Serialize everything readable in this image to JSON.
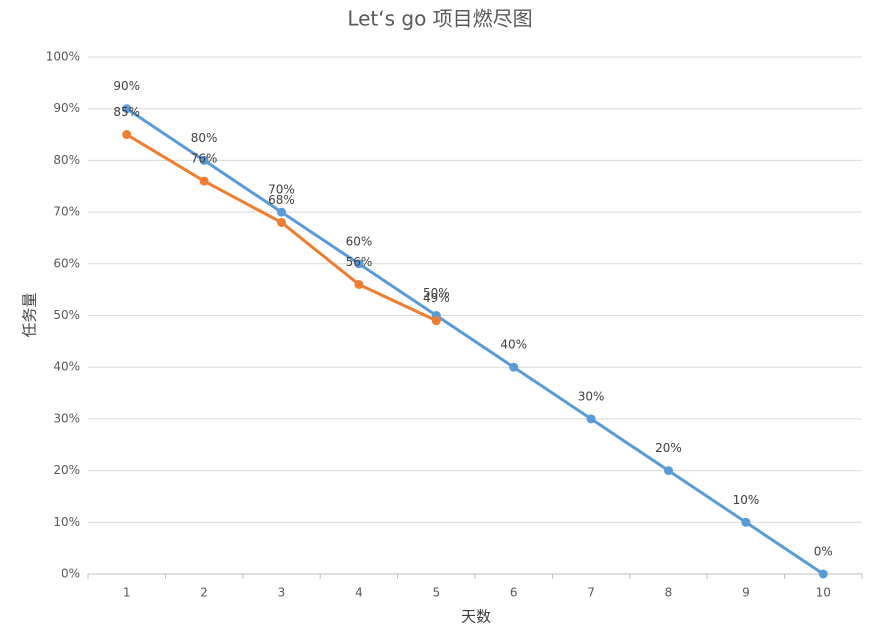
{
  "chart_data": {
    "type": "line",
    "title": "Let‘s go 项目燃尽图",
    "xlabel": "天数",
    "ylabel": "任务量",
    "categories": [
      1,
      2,
      3,
      4,
      5,
      6,
      7,
      8,
      9,
      10
    ],
    "series": [
      {
        "color": "#5b9bd5",
        "values": [
          90,
          80,
          70,
          60,
          50,
          40,
          30,
          20,
          10,
          0
        ],
        "value_labels": [
          "90%",
          "80%",
          "70%",
          "60%",
          "50%",
          "40%",
          "30%",
          "20%",
          "10%",
          "0%"
        ]
      },
      {
        "color": "#ed7d31",
        "values": [
          85,
          76,
          68,
          56,
          49,
          null,
          null,
          null,
          null,
          null
        ],
        "value_labels": [
          "85%",
          "76%",
          "68%",
          "56%",
          "49%",
          null,
          null,
          null,
          null,
          null
        ]
      }
    ],
    "ylim": [
      0,
      100
    ],
    "yticks": [
      {
        "value": 0,
        "label": "0%"
      },
      {
        "value": 10,
        "label": "10%"
      },
      {
        "value": 20,
        "label": "20%"
      },
      {
        "value": 30,
        "label": "30%"
      },
      {
        "value": 40,
        "label": "40%"
      },
      {
        "value": 50,
        "label": "50%"
      },
      {
        "value": 60,
        "label": "60%"
      },
      {
        "value": 70,
        "label": "70%"
      },
      {
        "value": 80,
        "label": "80%"
      },
      {
        "value": 90,
        "label": "90%"
      },
      {
        "value": 100,
        "label": "100%"
      }
    ],
    "grid": true
  }
}
